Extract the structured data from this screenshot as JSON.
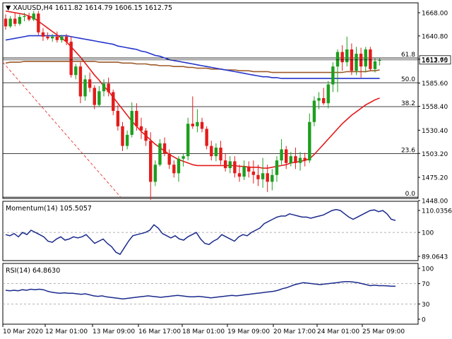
{
  "header": {
    "symbol": "XAUUSD,H4",
    "ohlc": "1611.82 1614.79 1606.15 1612.75",
    "momentum_label": "Momentum(14) 105.5057",
    "rsi_label": "RSI(14) 64.8630"
  },
  "colors": {
    "bull": "#1e9e1e",
    "bear": "#e31b1b",
    "sma_red": "#e31b1b",
    "sma_blue": "#2233cc",
    "sma_brown": "#9c5a2a",
    "oscillator": "#1a2a8c",
    "fib_line": "#000000",
    "dashed_trend": "#e31b1b"
  },
  "chart_data": [
    {
      "type": "candlestick",
      "panel": "price",
      "y_ticks": [
        "1668.00",
        "1640.80",
        "1613.60",
        "1585.60",
        "1558.40",
        "1530.40",
        "1503.20",
        "1475.20",
        "1448.00"
      ],
      "ylim": [
        1448,
        1668
      ],
      "current_price_label": "1612.75",
      "current_price": 1612.75,
      "x_tick_labels": [
        "10 Mar 2020",
        "12 Mar 01:00",
        "13 Mar 09:00",
        "16 Mar 17:00",
        "18 Mar 01:00",
        "19 Mar 09:00",
        "20 Mar 17:00",
        "24 Mar 01:00",
        "25 Mar 09:00"
      ],
      "candles": [
        {
          "o": 1661,
          "h": 1666,
          "l": 1648,
          "c": 1652
        },
        {
          "o": 1652,
          "h": 1664,
          "l": 1650,
          "c": 1661
        },
        {
          "o": 1661,
          "h": 1668,
          "l": 1652,
          "c": 1655
        },
        {
          "o": 1655,
          "h": 1666,
          "l": 1653,
          "c": 1663
        },
        {
          "o": 1663,
          "h": 1668,
          "l": 1658,
          "c": 1664
        },
        {
          "o": 1664,
          "h": 1668,
          "l": 1658,
          "c": 1660
        },
        {
          "o": 1660,
          "h": 1670,
          "l": 1658,
          "c": 1667
        },
        {
          "o": 1667,
          "h": 1670,
          "l": 1642,
          "c": 1645
        },
        {
          "o": 1645,
          "h": 1650,
          "l": 1635,
          "c": 1640
        },
        {
          "o": 1640,
          "h": 1645,
          "l": 1636,
          "c": 1638
        },
        {
          "o": 1638,
          "h": 1643,
          "l": 1634,
          "c": 1640
        },
        {
          "o": 1640,
          "h": 1646,
          "l": 1633,
          "c": 1636
        },
        {
          "o": 1636,
          "h": 1642,
          "l": 1633,
          "c": 1640
        },
        {
          "o": 1640,
          "h": 1643,
          "l": 1630,
          "c": 1634
        },
        {
          "o": 1634,
          "h": 1640,
          "l": 1592,
          "c": 1595
        },
        {
          "o": 1595,
          "h": 1608,
          "l": 1590,
          "c": 1605
        },
        {
          "o": 1605,
          "h": 1610,
          "l": 1562,
          "c": 1570
        },
        {
          "o": 1570,
          "h": 1595,
          "l": 1565,
          "c": 1590
        },
        {
          "o": 1590,
          "h": 1598,
          "l": 1575,
          "c": 1580
        },
        {
          "o": 1580,
          "h": 1583,
          "l": 1555,
          "c": 1560
        },
        {
          "o": 1560,
          "h": 1582,
          "l": 1558,
          "c": 1576
        },
        {
          "o": 1576,
          "h": 1590,
          "l": 1570,
          "c": 1585
        },
        {
          "o": 1585,
          "h": 1592,
          "l": 1570,
          "c": 1575
        },
        {
          "o": 1575,
          "h": 1578,
          "l": 1548,
          "c": 1553
        },
        {
          "o": 1553,
          "h": 1560,
          "l": 1530,
          "c": 1535
        },
        {
          "o": 1535,
          "h": 1540,
          "l": 1506,
          "c": 1512
        },
        {
          "o": 1512,
          "h": 1530,
          "l": 1508,
          "c": 1525
        },
        {
          "o": 1525,
          "h": 1563,
          "l": 1522,
          "c": 1553
        },
        {
          "o": 1553,
          "h": 1562,
          "l": 1530,
          "c": 1535
        },
        {
          "o": 1535,
          "h": 1545,
          "l": 1520,
          "c": 1530
        },
        {
          "o": 1530,
          "h": 1533,
          "l": 1512,
          "c": 1518
        },
        {
          "o": 1518,
          "h": 1528,
          "l": 1449,
          "c": 1470
        },
        {
          "o": 1470,
          "h": 1495,
          "l": 1465,
          "c": 1490
        },
        {
          "o": 1490,
          "h": 1520,
          "l": 1488,
          "c": 1515
        },
        {
          "o": 1515,
          "h": 1522,
          "l": 1500,
          "c": 1503
        },
        {
          "o": 1503,
          "h": 1508,
          "l": 1485,
          "c": 1490
        },
        {
          "o": 1490,
          "h": 1495,
          "l": 1475,
          "c": 1480
        },
        {
          "o": 1480,
          "h": 1500,
          "l": 1470,
          "c": 1497
        },
        {
          "o": 1497,
          "h": 1503,
          "l": 1488,
          "c": 1500
        },
        {
          "o": 1500,
          "h": 1545,
          "l": 1495,
          "c": 1538
        },
        {
          "o": 1538,
          "h": 1570,
          "l": 1532,
          "c": 1535
        },
        {
          "o": 1535,
          "h": 1555,
          "l": 1528,
          "c": 1540
        },
        {
          "o": 1540,
          "h": 1545,
          "l": 1528,
          "c": 1532
        },
        {
          "o": 1532,
          "h": 1535,
          "l": 1508,
          "c": 1512
        },
        {
          "o": 1512,
          "h": 1518,
          "l": 1495,
          "c": 1500
        },
        {
          "o": 1500,
          "h": 1515,
          "l": 1494,
          "c": 1510
        },
        {
          "o": 1510,
          "h": 1518,
          "l": 1490,
          "c": 1495
        },
        {
          "o": 1495,
          "h": 1503,
          "l": 1482,
          "c": 1486
        },
        {
          "o": 1486,
          "h": 1500,
          "l": 1480,
          "c": 1494
        },
        {
          "o": 1494,
          "h": 1500,
          "l": 1475,
          "c": 1480
        },
        {
          "o": 1480,
          "h": 1490,
          "l": 1470,
          "c": 1476
        },
        {
          "o": 1476,
          "h": 1495,
          "l": 1472,
          "c": 1488
        },
        {
          "o": 1488,
          "h": 1494,
          "l": 1475,
          "c": 1482
        },
        {
          "o": 1482,
          "h": 1495,
          "l": 1468,
          "c": 1478
        },
        {
          "o": 1478,
          "h": 1490,
          "l": 1465,
          "c": 1473
        },
        {
          "o": 1473,
          "h": 1498,
          "l": 1463,
          "c": 1480
        },
        {
          "o": 1480,
          "h": 1490,
          "l": 1458,
          "c": 1470
        },
        {
          "o": 1470,
          "h": 1485,
          "l": 1460,
          "c": 1478
        },
        {
          "o": 1478,
          "h": 1500,
          "l": 1470,
          "c": 1495
        },
        {
          "o": 1495,
          "h": 1520,
          "l": 1490,
          "c": 1508
        },
        {
          "o": 1508,
          "h": 1512,
          "l": 1485,
          "c": 1492
        },
        {
          "o": 1492,
          "h": 1505,
          "l": 1488,
          "c": 1500
        },
        {
          "o": 1500,
          "h": 1510,
          "l": 1485,
          "c": 1492
        },
        {
          "o": 1492,
          "h": 1505,
          "l": 1483,
          "c": 1498
        },
        {
          "o": 1498,
          "h": 1504,
          "l": 1488,
          "c": 1495
        },
        {
          "o": 1495,
          "h": 1550,
          "l": 1492,
          "c": 1540
        },
        {
          "o": 1540,
          "h": 1570,
          "l": 1535,
          "c": 1565
        },
        {
          "o": 1565,
          "h": 1575,
          "l": 1555,
          "c": 1568
        },
        {
          "o": 1568,
          "h": 1580,
          "l": 1560,
          "c": 1562
        },
        {
          "o": 1562,
          "h": 1588,
          "l": 1556,
          "c": 1584
        },
        {
          "o": 1584,
          "h": 1610,
          "l": 1575,
          "c": 1605
        },
        {
          "o": 1605,
          "h": 1625,
          "l": 1575,
          "c": 1622
        },
        {
          "o": 1622,
          "h": 1630,
          "l": 1600,
          "c": 1610
        },
        {
          "o": 1610,
          "h": 1640,
          "l": 1605,
          "c": 1625
        },
        {
          "o": 1625,
          "h": 1632,
          "l": 1595,
          "c": 1600
        },
        {
          "o": 1600,
          "h": 1628,
          "l": 1595,
          "c": 1620
        },
        {
          "o": 1620,
          "h": 1627,
          "l": 1592,
          "c": 1605
        },
        {
          "o": 1605,
          "h": 1628,
          "l": 1598,
          "c": 1625
        },
        {
          "o": 1625,
          "h": 1628,
          "l": 1600,
          "c": 1602
        },
        {
          "o": 1602,
          "h": 1615,
          "l": 1598,
          "c": 1611
        },
        {
          "o": 1611.82,
          "h": 1614.79,
          "l": 1606.15,
          "c": 1612.75
        }
      ],
      "sma_red": [
        1670,
        1669,
        1668,
        1667,
        1666,
        1664,
        1662,
        1658,
        1654,
        1650,
        1646,
        1642,
        1638,
        1634,
        1628,
        1622,
        1616,
        1609,
        1602,
        1595,
        1589,
        1582,
        1576,
        1569,
        1562,
        1555,
        1548,
        1541,
        1535,
        1529,
        1524,
        1519,
        1514,
        1510,
        1506,
        1502,
        1499,
        1496,
        1494,
        1492,
        1490,
        1489,
        1489,
        1489,
        1489,
        1489,
        1489,
        1489,
        1489,
        1489,
        1488,
        1488,
        1487,
        1487,
        1487,
        1486,
        1486,
        1487,
        1488,
        1489,
        1490,
        1492,
        1493,
        1494,
        1495,
        1497,
        1502,
        1508,
        1514,
        1520,
        1526,
        1532,
        1538,
        1543,
        1548,
        1552,
        1556,
        1560,
        1563,
        1566,
        1568
      ],
      "sma_blue": [
        1636,
        1637,
        1638,
        1639,
        1640,
        1641,
        1641,
        1641,
        1641,
        1641,
        1641,
        1641,
        1641,
        1641,
        1640,
        1639,
        1638,
        1637,
        1636,
        1635,
        1634,
        1633,
        1632,
        1631,
        1629,
        1628,
        1627,
        1626,
        1625,
        1623,
        1622,
        1620,
        1618,
        1617,
        1615,
        1613,
        1612,
        1611,
        1610,
        1609,
        1608,
        1607,
        1606,
        1605,
        1604,
        1603,
        1602,
        1601,
        1600,
        1599,
        1598,
        1597,
        1596,
        1595,
        1594,
        1593,
        1593,
        1592,
        1592,
        1591,
        1591,
        1591,
        1591,
        1591,
        1591,
        1591,
        1591,
        1591,
        1591,
        1591,
        1591,
        1591,
        1591,
        1591,
        1591,
        1591,
        1591,
        1591,
        1591,
        1591,
        1591
      ],
      "sma_brown": [
        1609,
        1610,
        1610,
        1610,
        1611,
        1611,
        1611,
        1611,
        1611,
        1611,
        1611,
        1611,
        1611,
        1611,
        1611,
        1611,
        1611,
        1611,
        1611,
        1611,
        1610,
        1610,
        1610,
        1610,
        1610,
        1609,
        1609,
        1609,
        1608,
        1608,
        1608,
        1607,
        1607,
        1606,
        1606,
        1606,
        1605,
        1605,
        1605,
        1604,
        1604,
        1603,
        1603,
        1603,
        1602,
        1602,
        1602,
        1601,
        1601,
        1601,
        1600,
        1600,
        1600,
        1599,
        1599,
        1599,
        1599,
        1598,
        1598,
        1598,
        1598,
        1598,
        1598,
        1598,
        1598,
        1598,
        1598,
        1598,
        1598,
        1598,
        1598,
        1598,
        1598,
        1599,
        1599,
        1599,
        1599,
        1599,
        1600,
        1600,
        1601
      ],
      "fib_levels": [
        {
          "label": "61.8",
          "value": 1615
        },
        {
          "label": "50.0",
          "value": 1586
        },
        {
          "label": "38.2",
          "value": 1558
        },
        {
          "label": "23.6",
          "value": 1503
        },
        {
          "label": "0.0",
          "value": 1452
        }
      ],
      "trend_line": {
        "from": {
          "index": 0,
          "value": 1610
        },
        "to": {
          "index": 24,
          "value": 1452
        }
      }
    },
    {
      "type": "line",
      "panel": "momentum",
      "title": "Momentum(14) 105.5057",
      "y_ticks": [
        "110.0356",
        "100",
        "89.0643"
      ],
      "ylim": [
        89.0643,
        110.0356
      ],
      "values": [
        99,
        98.5,
        99.5,
        98,
        100,
        99,
        101,
        100,
        99,
        98,
        96,
        95.5,
        97,
        98,
        96.5,
        97,
        98,
        97.5,
        98,
        99,
        97,
        95,
        96,
        97,
        95,
        93.5,
        91,
        90,
        93,
        96,
        98.5,
        99,
        99.5,
        100,
        101,
        103.5,
        102,
        99.5,
        98.5,
        97.5,
        98.5,
        97,
        96.5,
        98,
        99,
        100,
        97,
        95,
        94.5,
        96,
        97,
        99,
        98,
        97,
        96,
        98,
        99,
        98.5,
        100,
        101,
        102,
        104,
        105,
        106,
        107,
        107.5,
        107.5,
        108.5,
        108,
        107.5,
        107,
        107,
        106.5,
        107,
        107.5,
        108,
        109,
        110,
        110.5,
        110,
        108.5,
        107,
        106,
        107,
        108,
        109,
        110,
        110.3,
        109.5,
        110,
        108.5,
        106,
        105.5
      ]
    },
    {
      "type": "line",
      "panel": "rsi",
      "title": "RSI(14) 64.8630",
      "y_ticks": [
        "100",
        "70",
        "30",
        "0"
      ],
      "ylim": [
        0,
        100
      ],
      "values": [
        57,
        56,
        57,
        56,
        58,
        57,
        59,
        58,
        59,
        58,
        55,
        53,
        52,
        51,
        52,
        51,
        51,
        50,
        49,
        50,
        48,
        46,
        45,
        46,
        44,
        43,
        42,
        41,
        40,
        41,
        42,
        43,
        44,
        45,
        46,
        45,
        44,
        43,
        44,
        45,
        46,
        47,
        46,
        45,
        44,
        44,
        45,
        44,
        43,
        42,
        43,
        44,
        45,
        46,
        47,
        46,
        47,
        48,
        49,
        50,
        51,
        52,
        53,
        54,
        55,
        57,
        60,
        62,
        65,
        68,
        70,
        72,
        71,
        70,
        69,
        68,
        69,
        70,
        71,
        72,
        73,
        74,
        74,
        73,
        72,
        70,
        68,
        66,
        67,
        66,
        66,
        65.5,
        65,
        65
      ]
    }
  ]
}
